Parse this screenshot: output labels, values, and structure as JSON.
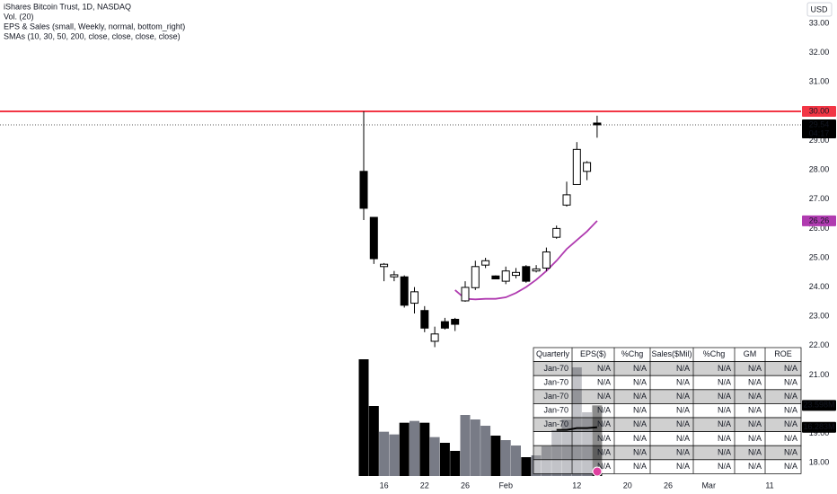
{
  "chart_data": {
    "type": "candlestick",
    "title": "iShares Bitcoin Trust, 1D, NASDAQ",
    "legend_lines": [
      "Vol. (20)",
      "EPS & Sales (small, Weekly, normal, bottom_right)",
      "SMAs (10, 30, 50, 200, close, close, close, close)"
    ],
    "currency": "USD",
    "categories": [
      null,
      null,
      "16",
      null,
      null,
      null,
      "22",
      null,
      null,
      null,
      "26",
      null,
      null,
      null,
      "Feb",
      null,
      null,
      null,
      null,
      null,
      null,
      "12",
      null,
      null,
      null,
      null,
      "20",
      null,
      null,
      null,
      "26",
      null,
      null,
      null,
      "Mar",
      null,
      null,
      null,
      null,
      null,
      "11"
    ],
    "open": [
      27.95,
      26.38,
      24.7,
      24.35,
      24.35,
      23.45,
      23.2,
      22.15,
      22.82,
      22.9,
      23.53,
      23.98,
      24.75,
      24.38,
      24.2,
      24.4,
      24.7,
      24.55,
      24.65,
      25.7,
      26.8,
      27.5,
      27.95,
      29.6,
      null,
      null,
      null,
      null,
      null,
      null,
      null,
      null,
      null,
      null,
      null,
      null,
      null,
      null,
      null,
      null,
      null
    ],
    "high": [
      30.0,
      26.38,
      24.82,
      24.55,
      24.4,
      24.0,
      23.35,
      22.65,
      22.95,
      22.95,
      24.2,
      24.9,
      25.0,
      24.4,
      24.7,
      24.65,
      24.75,
      24.75,
      25.35,
      26.1,
      27.6,
      28.95,
      28.3,
      29.85,
      null,
      null,
      null,
      null,
      null,
      null,
      null,
      null,
      null,
      null,
      null,
      null,
      null,
      null,
      null,
      null,
      null
    ],
    "low": [
      26.29,
      24.79,
      24.2,
      24.2,
      23.3,
      23.1,
      22.46,
      21.95,
      22.55,
      22.5,
      23.5,
      23.9,
      24.65,
      24.3,
      24.1,
      24.3,
      24.15,
      24.5,
      24.55,
      25.65,
      26.75,
      27.5,
      27.65,
      29.1,
      null,
      null,
      null,
      null,
      null,
      null,
      null,
      null,
      null,
      null,
      null,
      null,
      null,
      null,
      null,
      null,
      null
    ],
    "close": [
      26.69,
      24.97,
      24.78,
      24.42,
      23.38,
      23.84,
      22.6,
      22.4,
      22.6,
      22.73,
      23.99,
      24.7,
      24.9,
      24.28,
      24.55,
      24.5,
      24.2,
      24.62,
      25.2,
      26.0,
      27.15,
      28.7,
      28.25,
      29.54,
      null,
      null,
      null,
      null,
      null,
      null,
      null,
      null,
      null,
      null,
      null,
      null,
      null,
      null,
      null,
      null,
      null
    ],
    "up_color": "#ffffff",
    "down_color": "#000000",
    "wick_color": "#000000",
    "last_price_time": "04:17",
    "sma": {
      "color": "#b03bb0",
      "values": [
        null,
        null,
        null,
        null,
        null,
        null,
        null,
        null,
        null,
        23.9,
        23.6,
        23.58,
        23.6,
        23.6,
        23.65,
        23.8,
        24.0,
        24.25,
        24.55,
        24.9,
        25.3,
        25.6,
        25.9,
        26.26,
        null,
        null,
        null,
        null,
        null,
        null,
        null,
        null,
        null,
        null,
        null,
        null,
        null,
        null,
        null,
        null,
        null
      ]
    },
    "volume": {
      "axis": "y2",
      "up_color": "#787b86",
      "down_color": "#000000",
      "values": [
        39.0,
        23.4,
        14.8,
        13.9,
        17.8,
        18.4,
        17.8,
        13.0,
        11.1,
        8.4,
        20.4,
        18.9,
        16.8,
        13.5,
        12.0,
        10.2,
        6.3,
        6.9,
        9.9,
        15.3,
        18.9,
        36.3,
        21.3,
        23.598,
        null,
        null,
        null,
        null,
        null,
        null,
        null,
        null,
        null,
        null,
        null,
        null,
        null,
        null,
        null,
        null,
        null
      ],
      "last_label": "23.598M"
    },
    "volume_sma": {
      "axis": "y2",
      "color": "#000000",
      "values": [
        null,
        null,
        null,
        null,
        null,
        null,
        null,
        null,
        null,
        null,
        null,
        null,
        null,
        null,
        null,
        null,
        null,
        null,
        null,
        15.4,
        15.4,
        16.0,
        16.0,
        16.283,
        null,
        null,
        null,
        null,
        null,
        null,
        null,
        null,
        null,
        null,
        null,
        null,
        null,
        null,
        null,
        null,
        null
      ],
      "last_label": "16.283M"
    },
    "hline": {
      "value": 30,
      "label": "30.00",
      "color": "#f23645"
    },
    "ylim": [
      17.55,
      33.8
    ],
    "y2lim": [
      0,
      159
    ],
    "yticks": [
      {
        "value": 18,
        "label": "18.00"
      },
      {
        "value": 19,
        "label": "19.00"
      },
      {
        "value": 20,
        "label": "20.00"
      },
      {
        "value": 21,
        "label": "21.00"
      },
      {
        "value": 22,
        "label": "22.00"
      },
      {
        "value": 23,
        "label": "23.00"
      },
      {
        "value": 24,
        "label": "24.00"
      },
      {
        "value": 25,
        "label": "25.00"
      },
      {
        "value": 26,
        "label": "26.00"
      },
      {
        "value": 27,
        "label": "27.00"
      },
      {
        "value": 28,
        "label": "28.00"
      },
      {
        "value": 29,
        "label": "29.00"
      },
      {
        "value": 31,
        "label": "31.00"
      },
      {
        "value": 32,
        "label": "32.00"
      },
      {
        "value": 33,
        "label": "33.00"
      }
    ]
  },
  "table": {
    "columns": [
      "Quarterly",
      "EPS($)",
      "%Chg",
      "Sales($Mil)",
      "%Chg",
      "GM",
      "ROE"
    ],
    "rows": [
      [
        "Jan-70",
        "N/A",
        "N/A",
        "N/A",
        "N/A",
        "N/A",
        "N/A"
      ],
      [
        "Jan-70",
        "N/A",
        "N/A",
        "N/A",
        "N/A",
        "N/A",
        "N/A"
      ],
      [
        "Jan-70",
        "N/A",
        "N/A",
        "N/A",
        "N/A",
        "N/A",
        "N/A"
      ],
      [
        "Jan-70",
        "N/A",
        "N/A",
        "N/A",
        "N/A",
        "N/A",
        "N/A"
      ],
      [
        "Jan-70",
        "N/A",
        "N/A",
        "N/A",
        "N/A",
        "N/A",
        "N/A"
      ],
      [
        null,
        "N/A",
        "N/A",
        "N/A",
        "N/A",
        "N/A",
        "N/A"
      ],
      [
        null,
        "N/A",
        "N/A",
        "N/A",
        "N/A",
        "N/A",
        "N/A"
      ],
      [
        null,
        "N/A",
        "N/A",
        "N/A",
        "N/A",
        "N/A",
        "N/A"
      ]
    ]
  }
}
